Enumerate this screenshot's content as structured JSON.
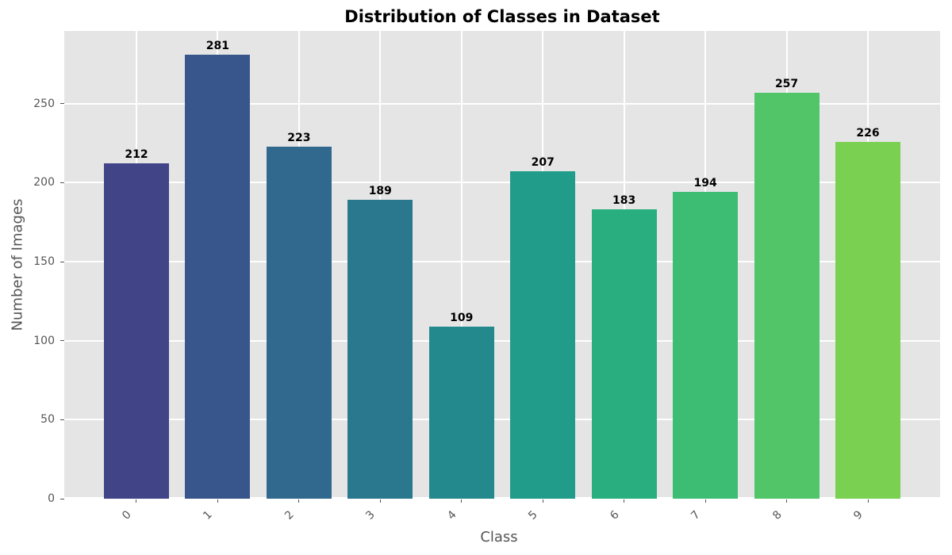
{
  "chart_data": {
    "type": "bar",
    "title": "Distribution of Classes in Dataset",
    "xlabel": "Class",
    "ylabel": "Number of Images",
    "categories": [
      "0",
      "1",
      "2",
      "3",
      "4",
      "5",
      "6",
      "7",
      "8",
      "9"
    ],
    "values": [
      212,
      281,
      223,
      189,
      109,
      207,
      183,
      194,
      257,
      226
    ],
    "bar_colors": [
      "#414487",
      "#39568C",
      "#31688E",
      "#2A788E",
      "#23898D",
      "#219C8B",
      "#29AF7F",
      "#3DBC74",
      "#52C569",
      "#7AD151"
    ],
    "yticks": [
      0,
      50,
      100,
      150,
      200,
      250
    ],
    "ylim": [
      0,
      296
    ],
    "grid": true,
    "legend": false,
    "value_labels": true,
    "colors": {
      "plot_bg": "#E5E5E5",
      "grid": "#FFFFFF",
      "tick": "#555555",
      "axis_label": "#555555",
      "title": "#000000",
      "value_label": "#000000"
    }
  }
}
